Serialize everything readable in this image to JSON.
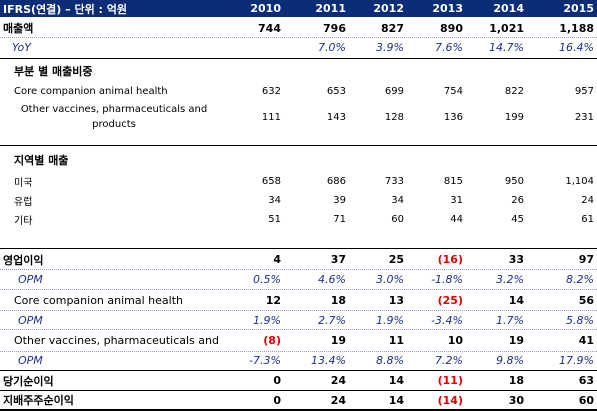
{
  "header": {
    "label": "IFRS(연결) – 단위 : 억원",
    "years": [
      "2010",
      "2011",
      "2012",
      "2013",
      "2014",
      "2015"
    ]
  },
  "sales": {
    "label": "매출액",
    "values": [
      "744",
      "796",
      "827",
      "890",
      "1,021",
      "1,188"
    ],
    "yoy_label": "YoY",
    "yoy": [
      "",
      "7.0%",
      "3.9%",
      "7.6%",
      "14.7%",
      "16.4%"
    ]
  },
  "segment": {
    "title": "부분 별 매출비중",
    "rows": [
      {
        "label": "Core companion animal health",
        "values": [
          "632",
          "653",
          "699",
          "754",
          "822",
          "957"
        ]
      },
      {
        "label_line1": "Other vaccines, pharmaceuticals and",
        "label_line2": "products",
        "values": [
          "111",
          "143",
          "128",
          "136",
          "199",
          "231"
        ]
      }
    ]
  },
  "region": {
    "title": "지역별 매출",
    "rows": [
      {
        "label": "미국",
        "values": [
          "658",
          "686",
          "733",
          "815",
          "950",
          "1,104"
        ]
      },
      {
        "label": "유럽",
        "values": [
          "34",
          "39",
          "34",
          "31",
          "26",
          "24"
        ]
      },
      {
        "label": "기타",
        "values": [
          "51",
          "71",
          "60",
          "44",
          "45",
          "61"
        ]
      }
    ]
  },
  "op_income": {
    "label": "영업이익",
    "values": [
      "4",
      "37",
      "25",
      "(16)",
      "33",
      "97"
    ],
    "opm_label": "OPM",
    "opm": [
      "0.5%",
      "4.6%",
      "3.0%",
      "-1.8%",
      "3.2%",
      "8.2%"
    ]
  },
  "core_op": {
    "label": "Core companion animal health",
    "values": [
      "12",
      "18",
      "13",
      "(25)",
      "14",
      "56"
    ],
    "opm_label": "OPM",
    "opm": [
      "1.9%",
      "2.7%",
      "1.9%",
      "-3.4%",
      "1.7%",
      "5.8%"
    ]
  },
  "other_op": {
    "label": "Other vaccines, pharmaceuticals and",
    "values": [
      "(8)",
      "19",
      "11",
      "10",
      "19",
      "41"
    ],
    "opm_label": "OPM",
    "opm": [
      "-7.3%",
      "13.4%",
      "8.8%",
      "7.2%",
      "9.8%",
      "17.9%"
    ]
  },
  "net_income": {
    "label": "당기순이익",
    "values": [
      "0",
      "24",
      "14",
      "(11)",
      "18",
      "63"
    ]
  },
  "controlling_income": {
    "label": "지배주주순이익",
    "values": [
      "0",
      "24",
      "14",
      "(14)",
      "30",
      "60"
    ]
  },
  "colors": {
    "header_bg": "#0b2d78",
    "negative": "#e00000",
    "italic_blue": "#1f2f8f"
  }
}
